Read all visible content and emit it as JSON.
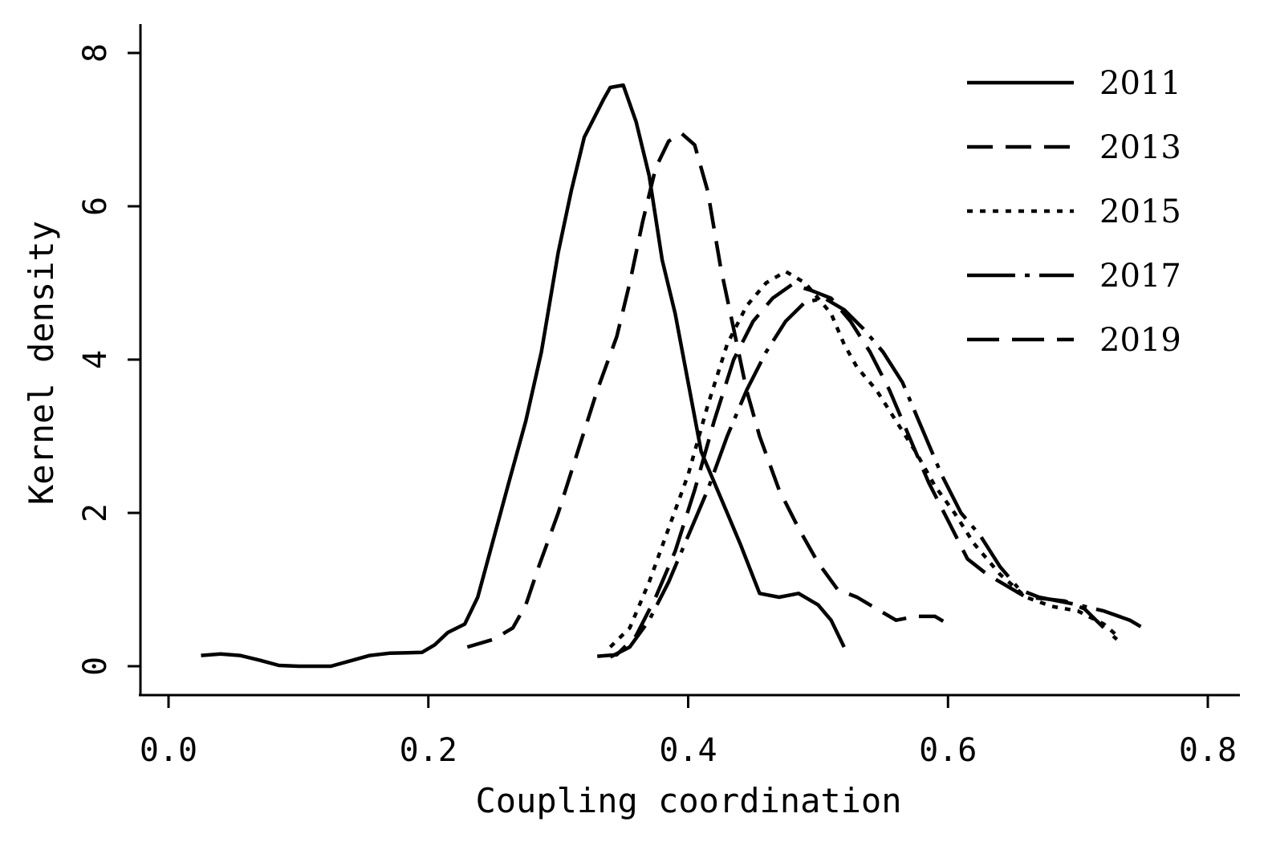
{
  "chart_data": {
    "type": "line",
    "xlabel": "Coupling coordination",
    "ylabel": "Kernel density",
    "xlim": [
      -0.05,
      0.82
    ],
    "ylim": [
      -0.7,
      8.4
    ],
    "xticks": [
      "0.0",
      "0.2",
      "0.4",
      "0.6",
      "0.8"
    ],
    "yticks": [
      "0",
      "2",
      "4",
      "6",
      "8"
    ],
    "legend_position": "top-right",
    "grid": false,
    "series": [
      {
        "name": "2011",
        "dash": "solid",
        "points": [
          [
            0.025,
            0.14
          ],
          [
            0.04,
            0.16
          ],
          [
            0.055,
            0.14
          ],
          [
            0.07,
            0.08
          ],
          [
            0.085,
            0.01
          ],
          [
            0.1,
            0.0
          ],
          [
            0.125,
            0.0
          ],
          [
            0.14,
            0.07
          ],
          [
            0.155,
            0.14
          ],
          [
            0.17,
            0.17
          ],
          [
            0.195,
            0.18
          ],
          [
            0.205,
            0.28
          ],
          [
            0.215,
            0.44
          ],
          [
            0.228,
            0.55
          ],
          [
            0.238,
            0.9
          ],
          [
            0.25,
            1.65
          ],
          [
            0.262,
            2.4
          ],
          [
            0.275,
            3.2
          ],
          [
            0.287,
            4.1
          ],
          [
            0.3,
            5.4
          ],
          [
            0.31,
            6.2
          ],
          [
            0.32,
            6.9
          ],
          [
            0.335,
            7.4
          ],
          [
            0.34,
            7.55
          ],
          [
            0.35,
            7.58
          ],
          [
            0.36,
            7.1
          ],
          [
            0.37,
            6.4
          ],
          [
            0.38,
            5.3
          ],
          [
            0.39,
            4.6
          ],
          [
            0.4,
            3.7
          ],
          [
            0.41,
            2.8
          ],
          [
            0.42,
            2.4
          ],
          [
            0.43,
            2.0
          ],
          [
            0.44,
            1.6
          ],
          [
            0.455,
            0.95
          ],
          [
            0.47,
            0.9
          ],
          [
            0.485,
            0.95
          ],
          [
            0.5,
            0.8
          ],
          [
            0.51,
            0.6
          ],
          [
            0.52,
            0.25
          ]
        ]
      },
      {
        "name": "2013",
        "dash": "dashed",
        "points": [
          [
            0.23,
            0.25
          ],
          [
            0.25,
            0.35
          ],
          [
            0.265,
            0.5
          ],
          [
            0.275,
            0.8
          ],
          [
            0.285,
            1.3
          ],
          [
            0.3,
            2.0
          ],
          [
            0.315,
            2.8
          ],
          [
            0.33,
            3.6
          ],
          [
            0.345,
            4.3
          ],
          [
            0.355,
            5.0
          ],
          [
            0.365,
            5.8
          ],
          [
            0.375,
            6.5
          ],
          [
            0.385,
            6.85
          ],
          [
            0.395,
            6.95
          ],
          [
            0.405,
            6.8
          ],
          [
            0.415,
            6.2
          ],
          [
            0.425,
            5.2
          ],
          [
            0.435,
            4.4
          ],
          [
            0.445,
            3.6
          ],
          [
            0.455,
            3.0
          ],
          [
            0.47,
            2.3
          ],
          [
            0.485,
            1.8
          ],
          [
            0.5,
            1.35
          ],
          [
            0.515,
            1.0
          ],
          [
            0.53,
            0.9
          ],
          [
            0.545,
            0.75
          ],
          [
            0.56,
            0.6
          ],
          [
            0.575,
            0.65
          ],
          [
            0.59,
            0.65
          ],
          [
            0.6,
            0.55
          ]
        ]
      },
      {
        "name": "2015",
        "dash": "dotted",
        "points": [
          [
            0.34,
            0.25
          ],
          [
            0.355,
            0.5
          ],
          [
            0.37,
            1.1
          ],
          [
            0.385,
            1.8
          ],
          [
            0.4,
            2.5
          ],
          [
            0.415,
            3.4
          ],
          [
            0.43,
            4.2
          ],
          [
            0.445,
            4.7
          ],
          [
            0.46,
            5.0
          ],
          [
            0.475,
            5.15
          ],
          [
            0.49,
            5.0
          ],
          [
            0.5,
            4.8
          ],
          [
            0.51,
            4.6
          ],
          [
            0.52,
            4.2
          ],
          [
            0.53,
            3.9
          ],
          [
            0.545,
            3.6
          ],
          [
            0.56,
            3.2
          ],
          [
            0.575,
            2.8
          ],
          [
            0.59,
            2.35
          ],
          [
            0.605,
            2.0
          ],
          [
            0.62,
            1.6
          ],
          [
            0.64,
            1.2
          ],
          [
            0.66,
            0.9
          ],
          [
            0.68,
            0.78
          ],
          [
            0.7,
            0.72
          ],
          [
            0.72,
            0.55
          ],
          [
            0.73,
            0.4
          ]
        ]
      },
      {
        "name": "2017",
        "dash": "dashdot",
        "points": [
          [
            0.34,
            0.12
          ],
          [
            0.355,
            0.25
          ],
          [
            0.37,
            0.6
          ],
          [
            0.385,
            1.1
          ],
          [
            0.4,
            1.7
          ],
          [
            0.415,
            2.3
          ],
          [
            0.43,
            3.0
          ],
          [
            0.445,
            3.6
          ],
          [
            0.46,
            4.1
          ],
          [
            0.475,
            4.5
          ],
          [
            0.49,
            4.75
          ],
          [
            0.505,
            4.8
          ],
          [
            0.52,
            4.65
          ],
          [
            0.535,
            4.4
          ],
          [
            0.55,
            4.1
          ],
          [
            0.565,
            3.7
          ],
          [
            0.58,
            3.1
          ],
          [
            0.595,
            2.5
          ],
          [
            0.61,
            2.0
          ],
          [
            0.625,
            1.7
          ],
          [
            0.64,
            1.3
          ],
          [
            0.655,
            1.0
          ],
          [
            0.67,
            0.9
          ],
          [
            0.685,
            0.85
          ],
          [
            0.7,
            0.8
          ],
          [
            0.72,
            0.72
          ],
          [
            0.74,
            0.6
          ],
          [
            0.75,
            0.5
          ]
        ]
      },
      {
        "name": "2019",
        "dash": "longdash",
        "points": [
          [
            0.33,
            0.13
          ],
          [
            0.345,
            0.15
          ],
          [
            0.36,
            0.4
          ],
          [
            0.375,
            0.9
          ],
          [
            0.39,
            1.5
          ],
          [
            0.405,
            2.3
          ],
          [
            0.42,
            3.2
          ],
          [
            0.435,
            4.0
          ],
          [
            0.45,
            4.5
          ],
          [
            0.465,
            4.8
          ],
          [
            0.48,
            4.98
          ],
          [
            0.495,
            4.9
          ],
          [
            0.51,
            4.8
          ],
          [
            0.525,
            4.5
          ],
          [
            0.54,
            4.1
          ],
          [
            0.555,
            3.6
          ],
          [
            0.57,
            3.0
          ],
          [
            0.585,
            2.4
          ],
          [
            0.6,
            1.9
          ],
          [
            0.615,
            1.4
          ],
          [
            0.63,
            1.2
          ],
          [
            0.645,
            1.05
          ],
          [
            0.66,
            0.9
          ],
          [
            0.675,
            0.88
          ],
          [
            0.69,
            0.85
          ],
          [
            0.705,
            0.75
          ],
          [
            0.72,
            0.5
          ],
          [
            0.73,
            0.35
          ]
        ]
      }
    ]
  }
}
